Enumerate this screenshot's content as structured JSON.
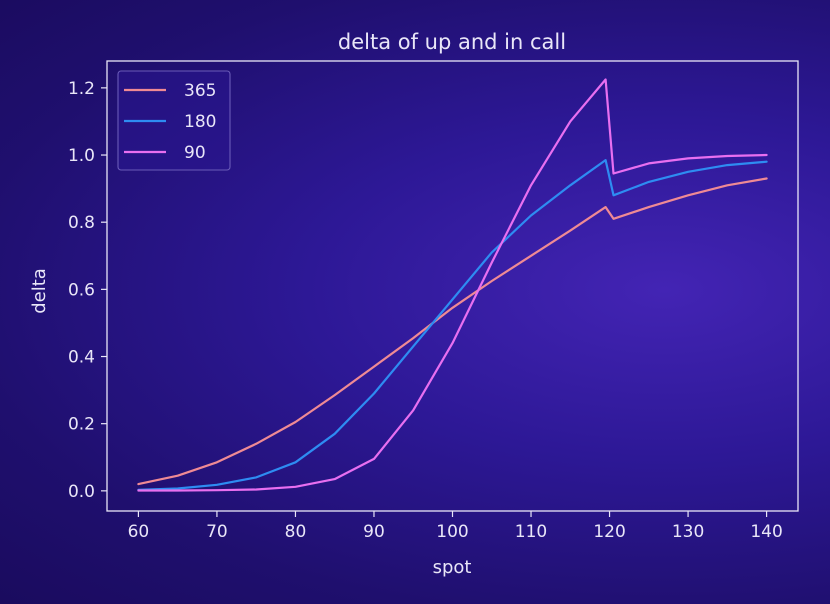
{
  "chart_data": {
    "type": "line",
    "title": "delta of up and in call",
    "xlabel": "spot",
    "ylabel": "delta",
    "xlim": [
      56,
      144
    ],
    "ylim": [
      -0.06,
      1.28
    ],
    "xticks": [
      60,
      70,
      80,
      90,
      100,
      110,
      120,
      130,
      140
    ],
    "xtick_labels": [
      "60",
      "70",
      "80",
      "90",
      "100",
      "110",
      "120",
      "130",
      "140"
    ],
    "yticks": [
      0.0,
      0.2,
      0.4,
      0.6,
      0.8,
      1.0,
      1.2
    ],
    "ytick_labels": [
      "0.0",
      "0.2",
      "0.4",
      "0.6",
      "0.8",
      "1.0",
      "1.2"
    ],
    "grid": false,
    "legend": {
      "placement": "top-left"
    },
    "colors": {
      "axes": "#e9e6f8",
      "legend_border": "#6a5bb8"
    },
    "series": [
      {
        "name": "365",
        "color": "#ef8a94",
        "x": [
          60,
          65,
          70,
          75,
          80,
          85,
          90,
          95,
          100,
          105,
          110,
          115,
          119.5,
          120.5,
          125,
          130,
          135,
          140
        ],
        "values": [
          0.02,
          0.045,
          0.085,
          0.14,
          0.205,
          0.285,
          0.37,
          0.455,
          0.545,
          0.625,
          0.7,
          0.775,
          0.845,
          0.81,
          0.845,
          0.88,
          0.91,
          0.93
        ]
      },
      {
        "name": "180",
        "color": "#2e8cf2",
        "x": [
          60,
          65,
          70,
          75,
          80,
          85,
          90,
          95,
          100,
          105,
          110,
          115,
          119.5,
          120.5,
          125,
          130,
          135,
          140
        ],
        "values": [
          0.003,
          0.007,
          0.018,
          0.04,
          0.085,
          0.17,
          0.29,
          0.43,
          0.57,
          0.71,
          0.82,
          0.91,
          0.985,
          0.88,
          0.92,
          0.95,
          0.97,
          0.98
        ]
      },
      {
        "name": "90",
        "color": "#e86ff0",
        "x": [
          60,
          65,
          70,
          75,
          80,
          85,
          90,
          95,
          100,
          105,
          110,
          115,
          119.5,
          120.5,
          125,
          130,
          135,
          140
        ],
        "values": [
          0.001,
          0.001,
          0.002,
          0.004,
          0.012,
          0.035,
          0.095,
          0.24,
          0.44,
          0.68,
          0.91,
          1.1,
          1.225,
          0.945,
          0.975,
          0.99,
          0.997,
          1.0
        ]
      }
    ]
  }
}
